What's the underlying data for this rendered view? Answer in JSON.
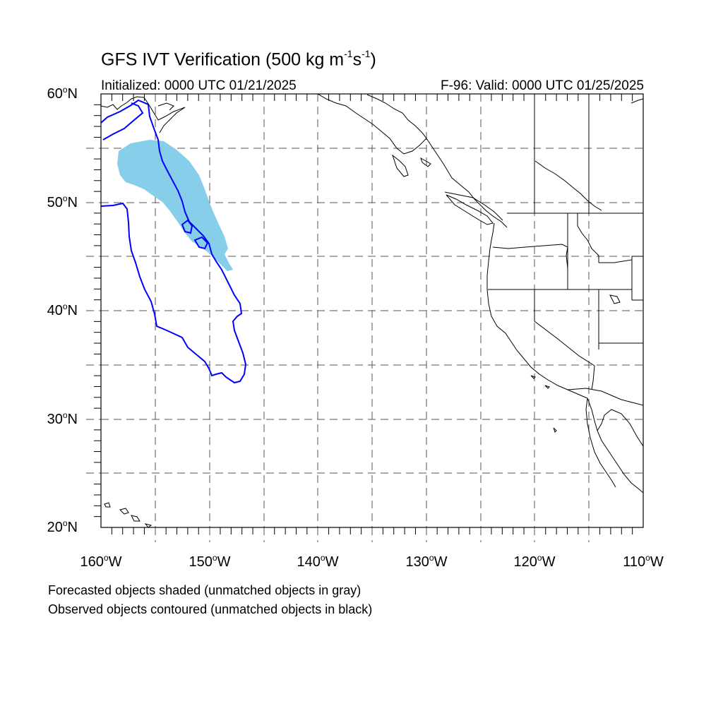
{
  "title": {
    "prefix": "GFS IVT Verification (500 kg m",
    "exp1": "-1",
    "mid": "s",
    "exp2": "-1",
    "suffix": ")"
  },
  "initialized": "Initialized: 0000 UTC 01/21/2025",
  "valid": "F-96: Valid: 0000 UTC 01/25/2025",
  "lat_labels": [
    {
      "text": "60",
      "unit": "o",
      "hemi": "N"
    },
    {
      "text": "50",
      "unit": "o",
      "hemi": "N"
    },
    {
      "text": "40",
      "unit": "o",
      "hemi": "N"
    },
    {
      "text": "30",
      "unit": "o",
      "hemi": "N"
    },
    {
      "text": "20",
      "unit": "o",
      "hemi": "N"
    }
  ],
  "lon_labels": [
    {
      "text": "160",
      "unit": "o",
      "hemi": "W"
    },
    {
      "text": "150",
      "unit": "o",
      "hemi": "W"
    },
    {
      "text": "140",
      "unit": "o",
      "hemi": "W"
    },
    {
      "text": "130",
      "unit": "o",
      "hemi": "W"
    },
    {
      "text": "120",
      "unit": "o",
      "hemi": "W"
    },
    {
      "text": "110",
      "unit": "o",
      "hemi": "W"
    }
  ],
  "notes": {
    "line1": "Forecasted objects shaded (unmatched objects in gray)",
    "line2": "Observed objects contoured (unmatched objects in black)"
  },
  "map_extent": {
    "lon_min": -160,
    "lon_max": -110,
    "lat_min": 20,
    "lat_max": 60
  },
  "colors": {
    "forecast_fill": "#87ceeb",
    "observed_contour": "#0000ff",
    "coastline": "#000000",
    "grid": "#555555"
  }
}
